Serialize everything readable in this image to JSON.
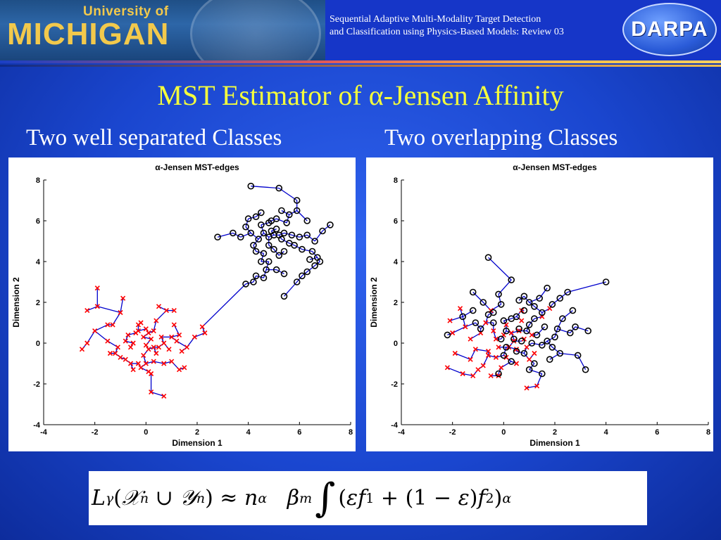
{
  "header": {
    "university_line1": "University of",
    "university_line2": "MICHIGAN",
    "title_line1": "Sequential Adaptive Multi-Modality Target Detection",
    "title_line2": "and Classification using Physics-Based Models: Review 03",
    "darpa_label": "DARPA"
  },
  "slide": {
    "title": "MST Estimator of α-Jensen Affinity",
    "left_subtitle": "Two well separated Classes",
    "right_subtitle": "Two overlapping  Classes"
  },
  "colors": {
    "title_yellow": "#f5ff3c",
    "class_x": "#ff0000",
    "class_o": "#000000",
    "mst_edge": "#0000cc",
    "background": "#1f4bd6"
  },
  "formula": {
    "text": "Lγ(𝒳n ∪ 𝒴n) ≈ n^α βm ∫(εf1 + (1 − ε)f2)^α"
  },
  "chart_data": [
    {
      "type": "scatter",
      "title": "α-Jensen MST-edges",
      "xlabel": "Dimension 1",
      "ylabel": "Dimension 2",
      "xlim": [
        -4,
        8
      ],
      "ylim": [
        -4,
        8
      ],
      "xticks": [
        "-4",
        "-2",
        "0",
        "2",
        "4",
        "6",
        "8"
      ],
      "yticks": [
        "-4",
        "-2",
        "0",
        "2",
        "4",
        "6",
        "8"
      ],
      "series": [
        {
          "marker": "x",
          "color": "#ff0000",
          "points": [
            [
              -2.5,
              -0.3
            ],
            [
              -2.3,
              0.0
            ],
            [
              -2.0,
              0.6
            ],
            [
              -2.3,
              1.6
            ],
            [
              -1.9,
              1.8
            ],
            [
              -1.9,
              2.7
            ],
            [
              -1.5,
              0.9
            ],
            [
              -1.3,
              0.9
            ],
            [
              -1.5,
              0.1
            ],
            [
              -1.1,
              -0.2
            ],
            [
              -1.2,
              -0.5
            ],
            [
              -1.0,
              -0.7
            ],
            [
              -0.8,
              -0.8
            ],
            [
              -1.0,
              1.5
            ],
            [
              -0.9,
              2.2
            ],
            [
              -0.7,
              0.4
            ],
            [
              -0.6,
              -0.2
            ],
            [
              -0.5,
              0.0
            ],
            [
              -0.4,
              0.5
            ],
            [
              -0.3,
              0.9
            ],
            [
              -0.3,
              0.6
            ],
            [
              -0.2,
              1.0
            ],
            [
              -0.1,
              0.3
            ],
            [
              0.0,
              0.7
            ],
            [
              0.1,
              0.5
            ],
            [
              0.2,
              0.2
            ],
            [
              0.3,
              0.6
            ],
            [
              0.0,
              -0.1
            ],
            [
              0.1,
              -0.3
            ],
            [
              -0.1,
              -0.6
            ],
            [
              -0.3,
              -1.0
            ],
            [
              -0.5,
              -1.3
            ],
            [
              -0.6,
              -1.0
            ],
            [
              -0.2,
              -1.2
            ],
            [
              0.0,
              -1.0
            ],
            [
              0.1,
              -1.4
            ],
            [
              0.3,
              -0.9
            ],
            [
              0.2,
              -1.5
            ],
            [
              0.4,
              -0.5
            ],
            [
              0.5,
              -0.2
            ],
            [
              0.6,
              0.3
            ],
            [
              0.7,
              0.0
            ],
            [
              0.8,
              1.6
            ],
            [
              0.5,
              1.8
            ],
            [
              1.1,
              1.6
            ],
            [
              1.1,
              0.9
            ],
            [
              0.9,
              -0.3
            ],
            [
              1.0,
              0.3
            ],
            [
              1.3,
              0.4
            ],
            [
              1.4,
              -0.4
            ],
            [
              1.6,
              -0.2
            ],
            [
              1.5,
              -1.2
            ],
            [
              1.3,
              -1.3
            ],
            [
              1.0,
              -0.9
            ],
            [
              0.7,
              -1.0
            ],
            [
              0.2,
              -2.4
            ],
            [
              0.7,
              -2.6
            ],
            [
              2.2,
              0.8
            ],
            [
              2.3,
              0.5
            ],
            [
              1.9,
              0.3
            ],
            [
              -1.4,
              -0.5
            ],
            [
              -0.8,
              0.1
            ],
            [
              0.3,
              -0.2
            ],
            [
              0.4,
              1.1
            ],
            [
              1.2,
              0.1
            ]
          ]
        },
        {
          "marker": "o",
          "color": "#000000",
          "points": [
            [
              4.1,
              7.7
            ],
            [
              5.2,
              7.6
            ],
            [
              5.9,
              7.0
            ],
            [
              5.3,
              6.5
            ],
            [
              5.6,
              6.3
            ],
            [
              5.9,
              6.5
            ],
            [
              6.3,
              6.0
            ],
            [
              7.2,
              5.8
            ],
            [
              6.9,
              5.5
            ],
            [
              6.6,
              5.0
            ],
            [
              2.8,
              5.2
            ],
            [
              3.4,
              5.4
            ],
            [
              3.7,
              5.2
            ],
            [
              3.9,
              5.7
            ],
            [
              4.0,
              6.1
            ],
            [
              4.3,
              6.2
            ],
            [
              4.5,
              6.4
            ],
            [
              4.5,
              5.8
            ],
            [
              4.8,
              5.9
            ],
            [
              4.9,
              6.0
            ],
            [
              5.1,
              6.1
            ],
            [
              5.1,
              5.6
            ],
            [
              5.2,
              5.3
            ],
            [
              5.4,
              5.4
            ],
            [
              5.3,
              5.1
            ],
            [
              5.0,
              5.3
            ],
            [
              4.8,
              5.2
            ],
            [
              4.6,
              5.4
            ],
            [
              4.4,
              5.1
            ],
            [
              4.2,
              4.8
            ],
            [
              4.3,
              4.5
            ],
            [
              4.6,
              4.4
            ],
            [
              4.8,
              4.8
            ],
            [
              5.0,
              4.6
            ],
            [
              5.2,
              4.3
            ],
            [
              5.4,
              4.5
            ],
            [
              5.6,
              4.9
            ],
            [
              5.8,
              4.8
            ],
            [
              6.0,
              5.2
            ],
            [
              6.1,
              4.6
            ],
            [
              6.3,
              5.3
            ],
            [
              6.5,
              4.5
            ],
            [
              6.4,
              4.1
            ],
            [
              6.7,
              4.2
            ],
            [
              6.8,
              4.0
            ],
            [
              6.6,
              3.8
            ],
            [
              6.3,
              3.5
            ],
            [
              6.1,
              3.3
            ],
            [
              5.9,
              3.0
            ],
            [
              5.4,
              2.3
            ],
            [
              5.4,
              3.4
            ],
            [
              5.1,
              3.6
            ],
            [
              4.8,
              4.0
            ],
            [
              4.5,
              4.0
            ],
            [
              4.3,
              3.3
            ],
            [
              4.6,
              3.2
            ],
            [
              4.2,
              3.0
            ],
            [
              3.9,
              2.9
            ],
            [
              4.7,
              3.6
            ],
            [
              4.9,
              5.5
            ],
            [
              5.5,
              5.9
            ],
            [
              4.1,
              5.4
            ],
            [
              5.7,
              5.3
            ]
          ]
        }
      ]
    },
    {
      "type": "scatter",
      "title": "α-Jensen MST-edges",
      "xlabel": "Dimension 1",
      "ylabel": "Dimension 2",
      "xlim": [
        -4,
        8
      ],
      "ylim": [
        -4,
        8
      ],
      "xticks": [
        "-4",
        "-2",
        "0",
        "2",
        "4",
        "6",
        "8"
      ],
      "yticks": [
        "-4",
        "-2",
        "0",
        "2",
        "4",
        "6",
        "8"
      ],
      "series": [
        {
          "marker": "x",
          "color": "#ff0000",
          "points": [
            [
              -2.2,
              -1.2
            ],
            [
              -1.6,
              -1.5
            ],
            [
              -1.9,
              -0.5
            ],
            [
              -2.0,
              0.5
            ],
            [
              -2.1,
              1.1
            ],
            [
              -1.5,
              0.8
            ],
            [
              -1.3,
              0.2
            ],
            [
              -1.1,
              -0.3
            ],
            [
              -1.3,
              -0.8
            ],
            [
              -1.0,
              -1.3
            ],
            [
              -1.2,
              -1.6
            ],
            [
              -0.5,
              -1.6
            ],
            [
              -0.8,
              -1.1
            ],
            [
              -0.6,
              -0.6
            ],
            [
              -0.9,
              0.5
            ],
            [
              -0.7,
              1.0
            ],
            [
              -0.5,
              1.6
            ],
            [
              -0.4,
              0.6
            ],
            [
              -0.3,
              0.2
            ],
            [
              -0.2,
              -0.2
            ],
            [
              -0.3,
              -0.7
            ],
            [
              -0.1,
              -1.2
            ],
            [
              0.1,
              -0.7
            ],
            [
              0.2,
              -0.2
            ],
            [
              0.0,
              0.4
            ],
            [
              0.1,
              0.9
            ],
            [
              0.3,
              0.5
            ],
            [
              0.4,
              0.1
            ],
            [
              0.5,
              -0.3
            ],
            [
              0.6,
              0.6
            ],
            [
              0.7,
              1.1
            ],
            [
              0.8,
              0.2
            ],
            [
              0.9,
              -0.2
            ],
            [
              1.0,
              -0.8
            ],
            [
              1.2,
              -0.5
            ],
            [
              1.1,
              0.4
            ],
            [
              0.5,
              -1.0
            ],
            [
              -0.2,
              -1.6
            ],
            [
              0.9,
              -2.2
            ],
            [
              1.3,
              -2.1
            ],
            [
              0.7,
              1.6
            ],
            [
              1.5,
              1.3
            ],
            [
              1.8,
              1.7
            ],
            [
              -1.7,
              1.7
            ],
            [
              -0.6,
              -0.4
            ]
          ]
        },
        {
          "marker": "o",
          "color": "#000000",
          "points": [
            [
              -0.6,
              4.2
            ],
            [
              0.3,
              3.1
            ],
            [
              -1.2,
              2.5
            ],
            [
              -0.2,
              2.4
            ],
            [
              -0.8,
              2.0
            ],
            [
              -1.2,
              1.6
            ],
            [
              -0.1,
              1.9
            ],
            [
              -0.4,
              1.5
            ],
            [
              -1.1,
              1.0
            ],
            [
              -0.9,
              0.7
            ],
            [
              -1.6,
              1.3
            ],
            [
              -2.2,
              0.4
            ],
            [
              -0.6,
              1.4
            ],
            [
              -0.4,
              1.0
            ],
            [
              0.0,
              1.1
            ],
            [
              0.1,
              0.6
            ],
            [
              -0.1,
              0.2
            ],
            [
              0.1,
              -0.2
            ],
            [
              0.0,
              -0.6
            ],
            [
              0.3,
              -0.9
            ],
            [
              -0.2,
              -1.5
            ],
            [
              0.4,
              0.2
            ],
            [
              0.6,
              0.7
            ],
            [
              0.5,
              1.3
            ],
            [
              0.8,
              1.6
            ],
            [
              0.6,
              2.1
            ],
            [
              0.8,
              2.3
            ],
            [
              1.0,
              2.0
            ],
            [
              1.2,
              1.8
            ],
            [
              1.4,
              2.2
            ],
            [
              1.7,
              2.7
            ],
            [
              1.5,
              1.5
            ],
            [
              1.9,
              1.9
            ],
            [
              2.2,
              2.2
            ],
            [
              2.5,
              2.5
            ],
            [
              4.0,
              3.0
            ],
            [
              2.7,
              1.6
            ],
            [
              2.3,
              1.2
            ],
            [
              2.1,
              0.7
            ],
            [
              2.6,
              0.5
            ],
            [
              3.3,
              0.6
            ],
            [
              2.8,
              0.8
            ],
            [
              2.0,
              0.3
            ],
            [
              1.9,
              -0.2
            ],
            [
              1.8,
              -0.8
            ],
            [
              2.2,
              -0.5
            ],
            [
              2.9,
              -0.6
            ],
            [
              3.2,
              -1.3
            ],
            [
              1.5,
              -1.5
            ],
            [
              1.2,
              -1.0
            ],
            [
              1.0,
              -1.3
            ],
            [
              0.8,
              -0.5
            ],
            [
              1.1,
              0.0
            ],
            [
              1.3,
              0.4
            ],
            [
              1.6,
              0.8
            ],
            [
              1.0,
              0.9
            ],
            [
              0.7,
              0.1
            ],
            [
              1.5,
              -0.1
            ],
            [
              1.2,
              1.2
            ],
            [
              0.3,
              1.2
            ],
            [
              0.9,
              0.6
            ],
            [
              0.5,
              -0.4
            ],
            [
              1.7,
              0.1
            ]
          ]
        }
      ]
    }
  ]
}
